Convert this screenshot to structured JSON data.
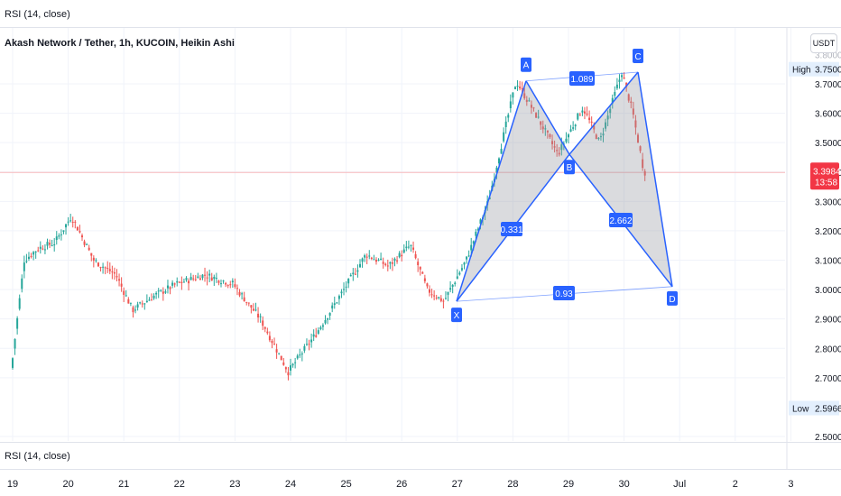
{
  "top_panel": {
    "label": "RSI (14, close)"
  },
  "bottom_panel": {
    "label": "RSI (14, close)"
  },
  "header": {
    "symbol_title": "Akash Network / Tether, 1h, KUCOIN, Heikin Ashi",
    "currency_button": "USDT"
  },
  "colors": {
    "up": "#26a69a",
    "down": "#ef5350",
    "pattern_line": "#2962ff",
    "pattern_fill": "#9598a1",
    "price_line": "#f23645"
  },
  "price_axis": {
    "ticks": [
      "3.7000",
      "3.6000",
      "3.5000",
      "3.4000",
      "3.3000",
      "3.2000",
      "3.1000",
      "3.0000",
      "2.9000",
      "2.8000",
      "2.7000",
      "2.5000"
    ],
    "high": {
      "label": "High",
      "value": "3.7500"
    },
    "low": {
      "label": "Low",
      "value": "2.5966"
    },
    "current": {
      "price": "3.3984",
      "countdown": "13:58"
    }
  },
  "time_axis": {
    "labels": [
      "19",
      "20",
      "21",
      "22",
      "23",
      "24",
      "25",
      "26",
      "27",
      "28",
      "29",
      "30",
      "Jul",
      "2",
      "3"
    ]
  },
  "harmonic_pattern": {
    "points": [
      {
        "name": "X",
        "price": 2.96
      },
      {
        "name": "A",
        "price": 3.71
      },
      {
        "name": "B",
        "price": 3.46
      },
      {
        "name": "C",
        "price": 3.74
      },
      {
        "name": "D",
        "price": 3.01
      }
    ],
    "ratios": {
      "XB": "0.331",
      "AC": "1.089",
      "BD": "2.662",
      "XD": "0.93"
    }
  },
  "chart_data": {
    "type": "candlestick",
    "style": "Heikin Ashi",
    "timeframe": "1h",
    "x_labels": [
      "19",
      "20",
      "21",
      "22",
      "23",
      "24",
      "25",
      "26",
      "27",
      "28",
      "29",
      "30",
      "Jul",
      "2",
      "3"
    ],
    "ylim": [
      2.48,
      3.78
    ],
    "grid": true,
    "trend_close": [
      {
        "x": 19.0,
        "price": 2.7
      },
      {
        "x": 19.25,
        "price": 3.1
      },
      {
        "x": 19.5,
        "price": 3.14
      },
      {
        "x": 19.8,
        "price": 3.16
      },
      {
        "x": 20.1,
        "price": 3.25
      },
      {
        "x": 20.5,
        "price": 3.1
      },
      {
        "x": 20.9,
        "price": 3.05
      },
      {
        "x": 21.2,
        "price": 2.93
      },
      {
        "x": 21.6,
        "price": 2.98
      },
      {
        "x": 22.0,
        "price": 3.02
      },
      {
        "x": 22.5,
        "price": 3.05
      },
      {
        "x": 23.0,
        "price": 3.02
      },
      {
        "x": 23.5,
        "price": 2.9
      },
      {
        "x": 24.0,
        "price": 2.72
      },
      {
        "x": 24.5,
        "price": 2.85
      },
      {
        "x": 25.0,
        "price": 3.0
      },
      {
        "x": 25.4,
        "price": 3.12
      },
      {
        "x": 25.8,
        "price": 3.08
      },
      {
        "x": 26.2,
        "price": 3.15
      },
      {
        "x": 26.5,
        "price": 3.0
      },
      {
        "x": 26.8,
        "price": 2.96
      },
      {
        "x": 27.2,
        "price": 3.1
      },
      {
        "x": 27.6,
        "price": 3.3
      },
      {
        "x": 28.1,
        "price": 3.71
      },
      {
        "x": 28.5,
        "price": 3.58
      },
      {
        "x": 28.85,
        "price": 3.46
      },
      {
        "x": 29.3,
        "price": 3.62
      },
      {
        "x": 29.6,
        "price": 3.5
      },
      {
        "x": 30.0,
        "price": 3.74
      },
      {
        "x": 30.2,
        "price": 3.6
      },
      {
        "x": 30.4,
        "price": 3.4
      }
    ]
  }
}
